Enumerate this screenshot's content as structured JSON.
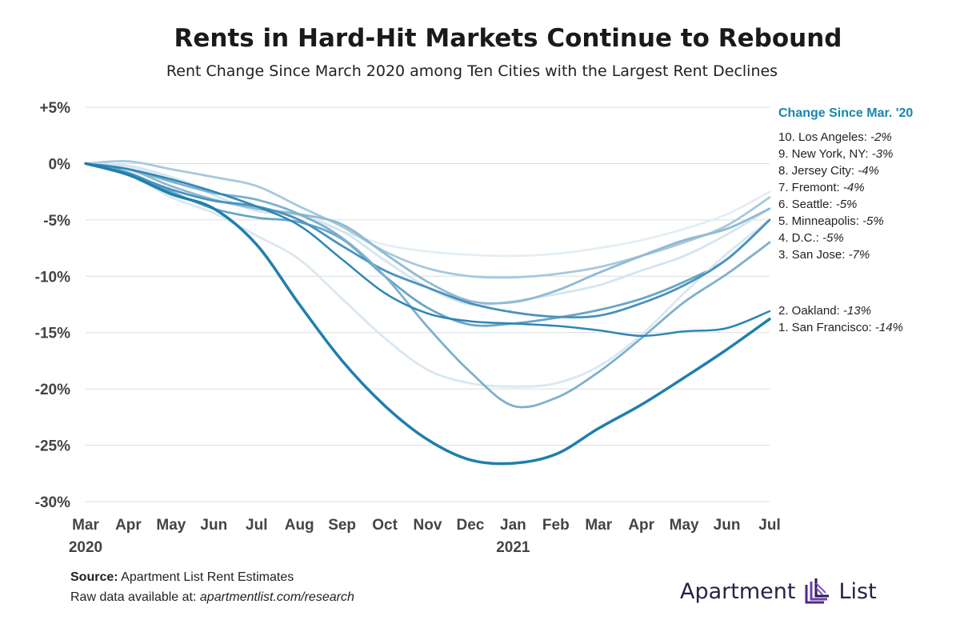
{
  "title": "Rents in Hard-Hit Markets Continue to Rebound",
  "subtitle": "Rent Change Since March 2020 among Ten Cities with the Largest Rent Declines",
  "footer": {
    "source_label": "Source:",
    "source_text": "Apartment List Rent Estimates",
    "raw_label": "Raw data available at:",
    "raw_url": "apartmentlist.com/research"
  },
  "logo": {
    "left": "Apartment",
    "right": "List"
  },
  "chart_data": {
    "type": "line",
    "title": "Rents in Hard-Hit Markets Continue to Rebound",
    "subtitle": "Rent Change Since March 2020 among Ten Cities with the Largest Rent Declines",
    "xlabel": "",
    "ylabel": "",
    "ylim": [
      -30,
      5
    ],
    "yticks": [
      5,
      0,
      -5,
      -10,
      -15,
      -20,
      -25,
      -30
    ],
    "ytick_labels": [
      "+5%",
      "0%",
      "-5%",
      "-10%",
      "-15%",
      "-20%",
      "-25%",
      "-30%"
    ],
    "categories": [
      "Mar",
      "Apr",
      "May",
      "Jun",
      "Jul",
      "Aug",
      "Sep",
      "Oct",
      "Nov",
      "Dec",
      "Jan",
      "Feb",
      "Mar",
      "Apr",
      "May",
      "Jun",
      "Jul"
    ],
    "year_labels": [
      {
        "index": 0,
        "label": "2020"
      },
      {
        "index": 10,
        "label": "2021"
      }
    ],
    "legend_title": "Change Since Mar. '20",
    "grid": true,
    "series": [
      {
        "rank": 10,
        "name": "Los Angeles",
        "change": "-2%",
        "color": "#e3eef5",
        "values": [
          0,
          -0.3,
          -1.2,
          -2.5,
          -3.8,
          -4.6,
          -6.0,
          -7.2,
          -7.8,
          -8.1,
          -8.2,
          -8.0,
          -7.5,
          -6.8,
          -5.8,
          -4.5,
          -2.5
        ]
      },
      {
        "rank": 9,
        "name": "New York, NY",
        "change": "-3%",
        "color": "#a7c9dd",
        "values": [
          0,
          0.2,
          -0.5,
          -1.2,
          -2.0,
          -3.8,
          -5.6,
          -7.8,
          -9.3,
          -10.0,
          -10.1,
          -9.8,
          -9.2,
          -8.2,
          -7.0,
          -5.5,
          -3.0
        ]
      },
      {
        "rank": 8,
        "name": "Jersey City",
        "change": "-4%",
        "color": "#d4e5ef",
        "values": [
          0,
          -0.2,
          -1.2,
          -2.8,
          -4.2,
          -4.6,
          -6.0,
          -8.6,
          -11.0,
          -12.5,
          -12.2,
          -11.6,
          -10.8,
          -9.5,
          -8.2,
          -6.3,
          -4.0
        ]
      },
      {
        "rank": 7,
        "name": "Fremont",
        "change": "-4%",
        "color": "#8fbad3",
        "values": [
          0,
          -0.5,
          -2.0,
          -3.2,
          -4.0,
          -4.5,
          -5.4,
          -8.0,
          -10.5,
          -12.2,
          -12.3,
          -11.3,
          -9.7,
          -8.2,
          -6.8,
          -5.8,
          -4.0
        ]
      },
      {
        "rank": 6,
        "name": "Seattle",
        "change": "-5%",
        "color": "#6aa5c7",
        "values": [
          0,
          -0.8,
          -2.5,
          -4.0,
          -4.8,
          -5.2,
          -6.7,
          -10.0,
          -12.8,
          -14.3,
          -14.2,
          -13.7,
          -13.0,
          -12.0,
          -10.5,
          -8.5,
          -5.0
        ]
      },
      {
        "rank": 5,
        "name": "Minneapolis",
        "change": "-5%",
        "color": "#d9e8f1",
        "values": [
          0,
          -1.0,
          -3.0,
          -4.4,
          -6.4,
          -8.5,
          -12.0,
          -15.5,
          -18.3,
          -19.5,
          -19.8,
          -19.5,
          -18.0,
          -15.2,
          -11.5,
          -8.0,
          -5.0
        ]
      },
      {
        "rank": 4,
        "name": "D.C.",
        "change": "-5%",
        "color": "#4a92bd",
        "values": [
          0,
          -0.9,
          -2.3,
          -3.3,
          -3.8,
          -5.0,
          -7.3,
          -9.5,
          -11.0,
          -12.4,
          -13.2,
          -13.6,
          -13.5,
          -12.4,
          -10.8,
          -8.5,
          -5.0
        ]
      },
      {
        "rank": 3,
        "name": "San Jose",
        "change": "-7%",
        "color": "#7db0cd",
        "values": [
          0,
          -0.5,
          -1.6,
          -2.6,
          -3.2,
          -4.5,
          -6.6,
          -10.0,
          -14.5,
          -18.5,
          -21.5,
          -20.8,
          -18.5,
          -15.5,
          -12.3,
          -9.8,
          -7.0
        ]
      },
      {
        "rank": 2,
        "name": "Oakland",
        "change": "-13%",
        "color": "#2d86b3",
        "values": [
          0,
          -0.5,
          -1.4,
          -2.5,
          -3.8,
          -5.5,
          -8.5,
          -11.5,
          -13.3,
          -14.0,
          -14.2,
          -14.4,
          -14.8,
          -15.3,
          -14.9,
          -14.6,
          -13.1
        ]
      },
      {
        "rank": 1,
        "name": "San Francisco",
        "change": "-14%",
        "color": "#1f7fab",
        "values": [
          0,
          -1.0,
          -2.7,
          -4.0,
          -7.2,
          -12.5,
          -17.5,
          -21.5,
          -24.5,
          -26.3,
          -26.6,
          -25.8,
          -23.5,
          -21.4,
          -19.0,
          -16.5,
          -13.8
        ]
      }
    ]
  }
}
